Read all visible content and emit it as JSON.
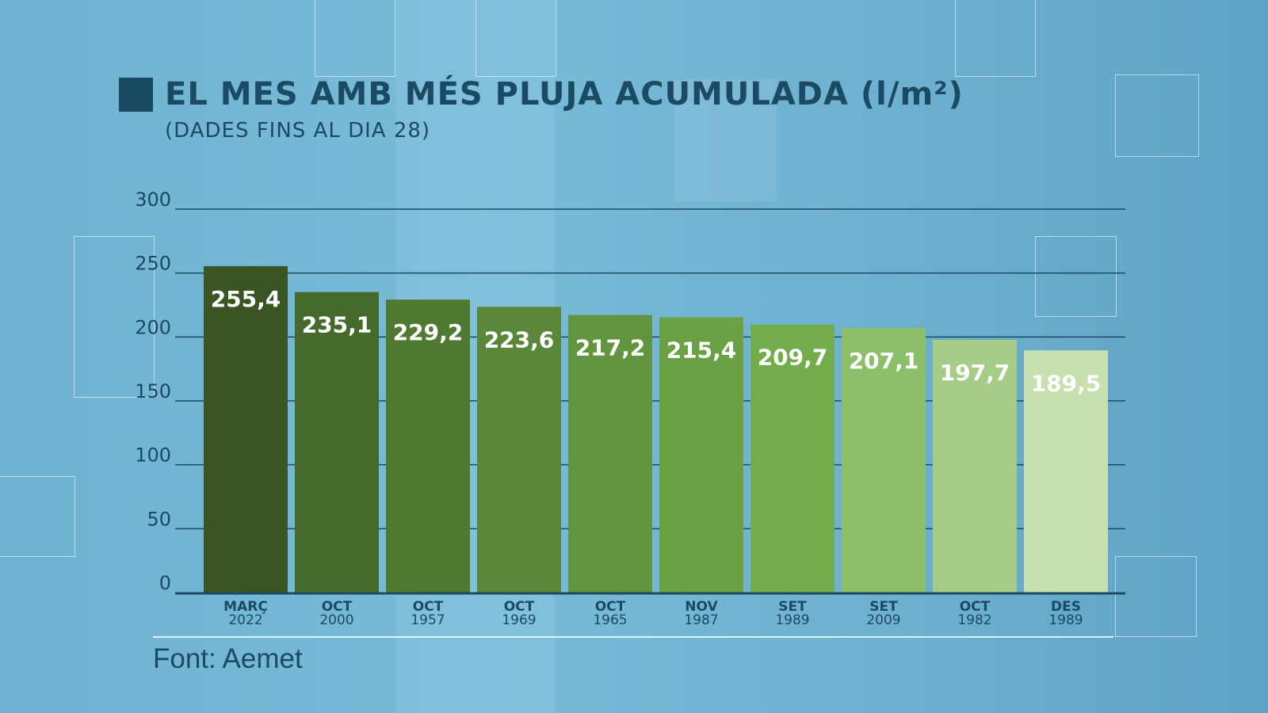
{
  "chart_data": {
    "type": "bar",
    "title": "EL MES AMB MÉS PLUJA ACUMULADA (l/m²)",
    "subtitle": "(DADES FINS AL DIA 28)",
    "source": "Font: Aemet",
    "xlabel": "",
    "ylabel": "",
    "ylim": [
      0,
      300
    ],
    "yticks": [
      0,
      50,
      100,
      150,
      200,
      250,
      300
    ],
    "grid": true,
    "categories": [
      {
        "month": "MARÇ",
        "year": "2022"
      },
      {
        "month": "OCT",
        "year": "2000"
      },
      {
        "month": "OCT",
        "year": "1957"
      },
      {
        "month": "OCT",
        "year": "1969"
      },
      {
        "month": "OCT",
        "year": "1965"
      },
      {
        "month": "NOV",
        "year": "1987"
      },
      {
        "month": "SET",
        "year": "1989"
      },
      {
        "month": "SET",
        "year": "2009"
      },
      {
        "month": "OCT",
        "year": "1982"
      },
      {
        "month": "DES",
        "year": "1989"
      }
    ],
    "values": [
      255.4,
      235.1,
      229.2,
      223.6,
      217.2,
      215.4,
      209.7,
      207.1,
      197.7,
      189.5
    ],
    "value_labels": [
      "255,4",
      "235,1",
      "229,2",
      "223,6",
      "217,2",
      "215,4",
      "209,7",
      "207,1",
      "197,7",
      "189,5"
    ],
    "colors": [
      "#3a5524",
      "#456a2b",
      "#507931",
      "#5b873a",
      "#629540",
      "#69a144",
      "#73ad4b",
      "#8bbf6a",
      "#a6cd88",
      "#c6e0b0"
    ]
  }
}
